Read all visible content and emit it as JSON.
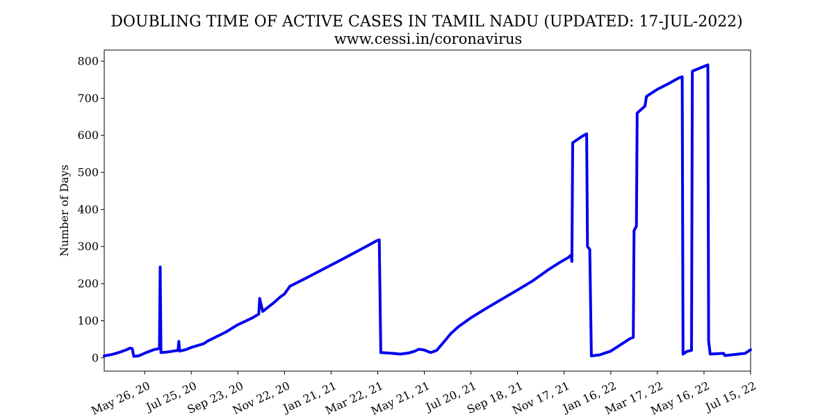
{
  "chart_data": {
    "type": "line",
    "title": "DOUBLING TIME OF ACTIVE CASES IN TAMIL NADU (UPDATED: 17-JUL-2022)",
    "subtitle": "www.cessi.in/coronavirus",
    "xlabel": "",
    "ylabel": "Number of Days",
    "ylim": [
      -36,
      830
    ],
    "xlim": [
      "2020-04-04",
      "2022-07-15"
    ],
    "yticks": [
      0,
      100,
      200,
      300,
      400,
      500,
      600,
      700,
      800
    ],
    "xticks": [
      {
        "date": "2020-05-26",
        "label": "May 26, 20"
      },
      {
        "date": "2020-07-25",
        "label": "Jul 25, 20"
      },
      {
        "date": "2020-09-23",
        "label": "Sep 23, 20"
      },
      {
        "date": "2020-11-22",
        "label": "Nov 22, 20"
      },
      {
        "date": "2021-01-21",
        "label": "Jan 21, 21"
      },
      {
        "date": "2021-03-22",
        "label": "Mar 22, 21"
      },
      {
        "date": "2021-05-21",
        "label": "May 21, 21"
      },
      {
        "date": "2021-07-20",
        "label": "Jul 20, 21"
      },
      {
        "date": "2021-09-18",
        "label": "Sep 18, 21"
      },
      {
        "date": "2021-11-17",
        "label": "Nov 17, 21"
      },
      {
        "date": "2022-01-16",
        "label": "Jan 16, 22"
      },
      {
        "date": "2022-03-17",
        "label": "Mar 17, 22"
      },
      {
        "date": "2022-05-16",
        "label": "May 16, 22"
      },
      {
        "date": "2022-07-15",
        "label": "Jul 15, 22"
      }
    ],
    "grid": false,
    "color": "#0000ee",
    "series": [
      {
        "points": [
          [
            "2020-04-04",
            5
          ],
          [
            "2020-04-14",
            9
          ],
          [
            "2020-04-24",
            15
          ],
          [
            "2020-05-03",
            22
          ],
          [
            "2020-05-07",
            26
          ],
          [
            "2020-05-10",
            25
          ],
          [
            "2020-05-12",
            4
          ],
          [
            "2020-05-18",
            5
          ],
          [
            "2020-05-28",
            14
          ],
          [
            "2020-06-07",
            22
          ],
          [
            "2020-06-14",
            25
          ],
          [
            "2020-06-15",
            245
          ],
          [
            "2020-06-16",
            14
          ],
          [
            "2020-06-22",
            15
          ],
          [
            "2020-07-02",
            18
          ],
          [
            "2020-07-08",
            20
          ],
          [
            "2020-07-09",
            44
          ],
          [
            "2020-07-10",
            18
          ],
          [
            "2020-07-18",
            22
          ],
          [
            "2020-07-25",
            28
          ],
          [
            "2020-08-10",
            38
          ],
          [
            "2020-08-15",
            45
          ],
          [
            "2020-09-08",
            70
          ],
          [
            "2020-09-22",
            88
          ],
          [
            "2020-10-12",
            108
          ],
          [
            "2020-10-20",
            118
          ],
          [
            "2020-10-21",
            160
          ],
          [
            "2020-10-25",
            125
          ],
          [
            "2020-11-08",
            148
          ],
          [
            "2020-11-16",
            163
          ],
          [
            "2020-11-22",
            172
          ],
          [
            "2020-11-29",
            193
          ],
          [
            "2020-12-20",
            215
          ],
          [
            "2021-01-21",
            250
          ],
          [
            "2021-02-10",
            272
          ],
          [
            "2021-03-07",
            300
          ],
          [
            "2021-03-20",
            315
          ],
          [
            "2021-03-24",
            318
          ],
          [
            "2021-03-26",
            14
          ],
          [
            "2021-04-10",
            12
          ],
          [
            "2021-04-20",
            10
          ],
          [
            "2021-05-01",
            13
          ],
          [
            "2021-05-09",
            18
          ],
          [
            "2021-05-14",
            23
          ],
          [
            "2021-05-21",
            21
          ],
          [
            "2021-05-29",
            14
          ],
          [
            "2021-06-06",
            20
          ],
          [
            "2021-06-14",
            40
          ],
          [
            "2021-06-24",
            65
          ],
          [
            "2021-07-04",
            84
          ],
          [
            "2021-07-20",
            108
          ],
          [
            "2021-08-10",
            135
          ],
          [
            "2021-09-18",
            183
          ],
          [
            "2021-10-08",
            208
          ],
          [
            "2021-10-28",
            238
          ],
          [
            "2021-11-12",
            258
          ],
          [
            "2021-11-22",
            270
          ],
          [
            "2021-11-26",
            277
          ],
          [
            "2021-11-27",
            260
          ],
          [
            "2021-11-28",
            580
          ],
          [
            "2021-12-10",
            597
          ],
          [
            "2021-12-16",
            604
          ],
          [
            "2021-12-17",
            300
          ],
          [
            "2021-12-20",
            292
          ],
          [
            "2021-12-22",
            5
          ],
          [
            "2022-01-02",
            8
          ],
          [
            "2022-01-16",
            18
          ],
          [
            "2022-02-10",
            52
          ],
          [
            "2022-02-14",
            55
          ],
          [
            "2022-02-15",
            343
          ],
          [
            "2022-02-18",
            355
          ],
          [
            "2022-02-19",
            660
          ],
          [
            "2022-03-01",
            679
          ],
          [
            "2022-03-03",
            705
          ],
          [
            "2022-03-17",
            724
          ],
          [
            "2022-04-01",
            740
          ],
          [
            "2022-04-13",
            754
          ],
          [
            "2022-04-18",
            758
          ],
          [
            "2022-04-19",
            10
          ],
          [
            "2022-04-24",
            17
          ],
          [
            "2022-04-30",
            20
          ],
          [
            "2022-05-01",
            773
          ],
          [
            "2022-05-21",
            790
          ],
          [
            "2022-05-22",
            45
          ],
          [
            "2022-05-24",
            10
          ],
          [
            "2022-06-10",
            12
          ],
          [
            "2022-06-12",
            6
          ],
          [
            "2022-07-08",
            12
          ],
          [
            "2022-07-15",
            22
          ]
        ]
      }
    ]
  }
}
